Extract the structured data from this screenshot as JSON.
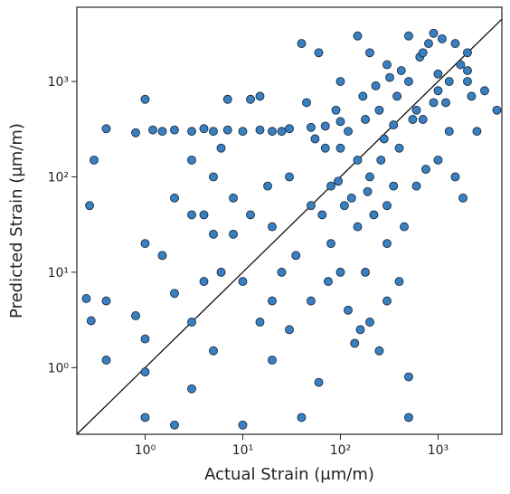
{
  "chart_data": {
    "type": "scatter",
    "xlabel": "Actual Strain (μm/m)",
    "ylabel": "Predicted Strain (μm/m)",
    "log_x": true,
    "log_y": true,
    "color": "#3a7fc0",
    "edge_color": "#1a2f45",
    "xlim": [
      0.2,
      4500
    ],
    "ylim": [
      0.2,
      6000
    ],
    "xticks": [
      {
        "value": 1,
        "label": "10⁰"
      },
      {
        "value": 10,
        "label": "10¹"
      },
      {
        "value": 100,
        "label": "10²"
      },
      {
        "value": 1000,
        "label": "10³"
      }
    ],
    "yticks": [
      {
        "value": 1,
        "label": "10⁰"
      },
      {
        "value": 10,
        "label": "10¹"
      },
      {
        "value": 100,
        "label": "10²"
      },
      {
        "value": 1000,
        "label": "10³"
      }
    ],
    "x": [
      0.4,
      0.8,
      1.2,
      1.5,
      2,
      3,
      4,
      5,
      7,
      10,
      15,
      20,
      30,
      50,
      70,
      100,
      0.27,
      0.25,
      0.28,
      0.3,
      0.4,
      0.4,
      1,
      1,
      1,
      1,
      1,
      0.8,
      1.5,
      2,
      2,
      2,
      3,
      3,
      3,
      5,
      5,
      5,
      7,
      8,
      10,
      10,
      12,
      15,
      15,
      20,
      20,
      30,
      40,
      60,
      80,
      100,
      100,
      120,
      150,
      150,
      200,
      200,
      200,
      250,
      300,
      300,
      300,
      400,
      400,
      500,
      500,
      500,
      500,
      600,
      700,
      800,
      1000,
      1000,
      1200,
      1500,
      1500,
      2000,
      2000,
      2500,
      3000,
      4000,
      50,
      50,
      60,
      70,
      80,
      90,
      120,
      130,
      150,
      170,
      180,
      220,
      250,
      280,
      350,
      380,
      450,
      550,
      650,
      750,
      900,
      1100,
      1300,
      1700,
      1800,
      2200,
      30,
      35,
      40,
      45,
      25,
      25,
      20,
      18,
      12,
      8,
      6,
      6,
      4,
      4,
      3,
      140,
      160,
      300,
      100,
      110,
      180,
      230,
      320,
      420,
      700,
      900,
      1000,
      1300,
      2000,
      600,
      350,
      260,
      190,
      95,
      75,
      65,
      55
    ],
    "values": [
      320,
      290,
      310,
      300,
      310,
      300,
      320,
      300,
      310,
      300,
      310,
      300,
      320,
      330,
      340,
      380,
      50,
      5.3,
      3.1,
      150,
      5,
      1.2,
      650,
      20,
      2,
      0.9,
      0.3,
      3.5,
      15,
      60,
      6,
      0.25,
      40,
      3,
      0.6,
      100,
      25,
      1.5,
      650,
      60,
      8,
      0.25,
      650,
      700,
      3,
      1.2,
      30,
      2.5,
      2500,
      2000,
      80,
      10,
      1000,
      300,
      3000,
      30,
      100,
      3,
      2000,
      500,
      50,
      20,
      1500,
      200,
      8,
      1000,
      3000,
      0.8,
      0.3,
      80,
      400,
      2500,
      1200,
      150,
      600,
      2500,
      100,
      1000,
      2000,
      300,
      800,
      500,
      50,
      5,
      0.7,
      200,
      20,
      500,
      4,
      60,
      150,
      700,
      10,
      40,
      1.5,
      250,
      80,
      700,
      30,
      400,
      1800,
      120,
      600,
      2800,
      300,
      1500,
      60,
      700,
      100,
      15,
      0.3,
      600,
      300,
      10,
      5,
      80,
      40,
      25,
      10,
      200,
      8,
      40,
      150,
      1.8,
      2.5,
      5,
      200,
      50,
      400,
      900,
      1100,
      1300,
      2000,
      3200,
      800,
      1000,
      1300,
      500,
      350,
      150,
      70,
      90,
      8,
      40,
      250
    ]
  }
}
